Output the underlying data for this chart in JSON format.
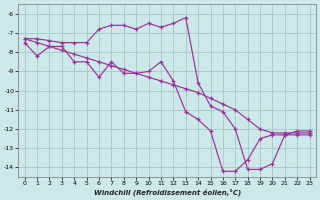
{
  "xlabel": "Windchill (Refroidissement éolien,°C)",
  "background_color": "#cce8e8",
  "grid_color": "#aacccc",
  "line_color": "#993399",
  "xlim": [
    0,
    23
  ],
  "ylim": [
    -14.5,
    -5.5
  ],
  "xticks": [
    0,
    1,
    2,
    3,
    4,
    5,
    6,
    7,
    8,
    9,
    10,
    11,
    12,
    13,
    14,
    15,
    16,
    17,
    18,
    19,
    20,
    21,
    22,
    23
  ],
  "yticks": [
    -14,
    -13,
    -12,
    -11,
    -10,
    -9,
    -8,
    -7,
    -6
  ],
  "curve1_x": [
    0,
    1,
    2,
    3,
    4,
    5,
    6,
    7,
    8,
    9,
    10,
    11,
    12,
    13,
    14,
    15,
    16,
    17,
    18,
    19,
    20,
    21,
    22,
    23
  ],
  "curve1_y": [
    -7.3,
    -7.3,
    -7.4,
    -7.5,
    -7.5,
    -7.5,
    -6.8,
    -6.6,
    -6.6,
    -6.8,
    -6.5,
    -6.7,
    -6.5,
    -6.2,
    -9.6,
    -10.8,
    -11.1,
    -12.0,
    -14.1,
    -14.1,
    -13.8,
    -12.3,
    -12.1,
    -12.1
  ],
  "curve2_x": [
    0,
    1,
    2,
    3,
    4,
    5,
    6,
    7,
    8,
    9,
    10,
    11,
    12,
    13,
    14,
    15,
    16,
    17,
    18,
    19,
    20,
    21,
    22,
    23
  ],
  "curve2_y": [
    -7.5,
    -8.2,
    -7.7,
    -7.7,
    -8.5,
    -8.5,
    -9.3,
    -8.5,
    -9.1,
    -9.1,
    -9.0,
    -8.5,
    -9.5,
    -11.1,
    -11.5,
    -12.1,
    -14.2,
    -14.2,
    -13.6,
    -12.5,
    -12.3,
    -12.3,
    -12.3,
    -12.3
  ],
  "curve3_x": [
    0,
    1,
    2,
    3,
    4,
    5,
    6,
    7,
    8,
    9,
    10,
    11,
    12,
    13,
    14,
    15,
    16,
    17,
    18,
    19,
    20,
    21,
    22,
    23
  ],
  "curve3_y": [
    -7.3,
    -7.5,
    -7.7,
    -7.9,
    -8.1,
    -8.3,
    -8.5,
    -8.7,
    -8.9,
    -9.1,
    -9.3,
    -9.5,
    -9.7,
    -9.9,
    -10.1,
    -10.4,
    -10.7,
    -11.0,
    -11.5,
    -12.0,
    -12.2,
    -12.2,
    -12.2,
    -12.2
  ]
}
